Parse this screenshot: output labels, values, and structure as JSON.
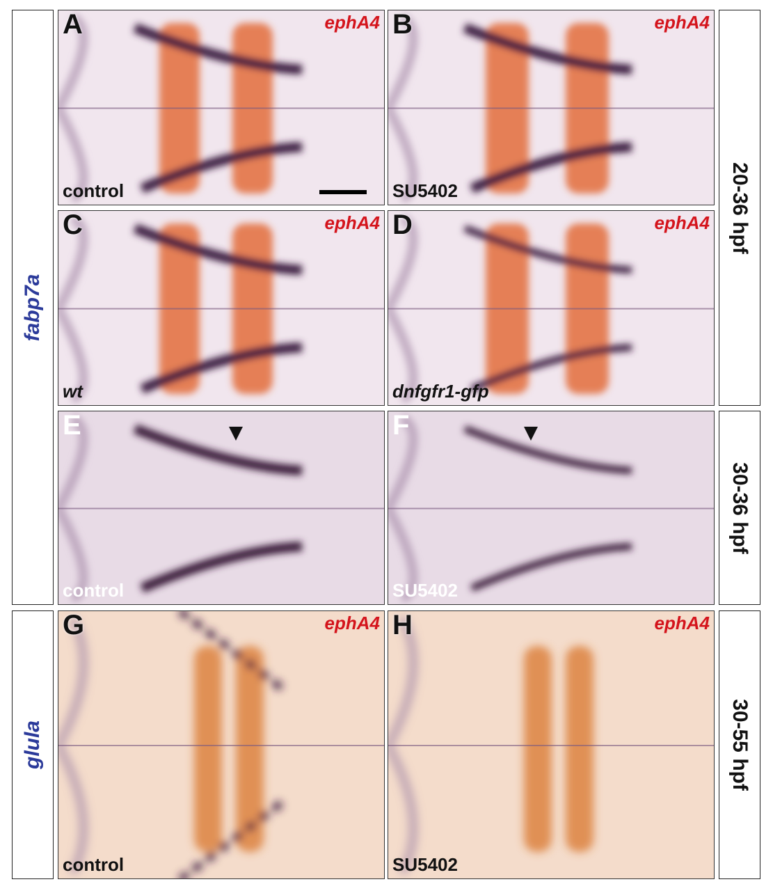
{
  "side_labels": {
    "left": [
      "fabp7a",
      "glula"
    ],
    "right": [
      "20-36 hpf",
      "30-36 hpf",
      "30-55 hpf"
    ]
  },
  "panels": [
    {
      "letter": "A",
      "probe": "ephA4",
      "condition": "control"
    },
    {
      "letter": "B",
      "probe": "ephA4",
      "condition": "SU5402"
    },
    {
      "letter": "C",
      "probe": "ephA4",
      "condition": "wt"
    },
    {
      "letter": "D",
      "probe": "ephA4",
      "condition": "dnfgfr1-gfp"
    },
    {
      "letter": "E",
      "condition": "control"
    },
    {
      "letter": "F",
      "condition": "SU5402"
    },
    {
      "letter": "G",
      "probe": "ephA4",
      "condition": "control"
    },
    {
      "letter": "H",
      "probe": "ephA4",
      "condition": "SU5402"
    }
  ]
}
